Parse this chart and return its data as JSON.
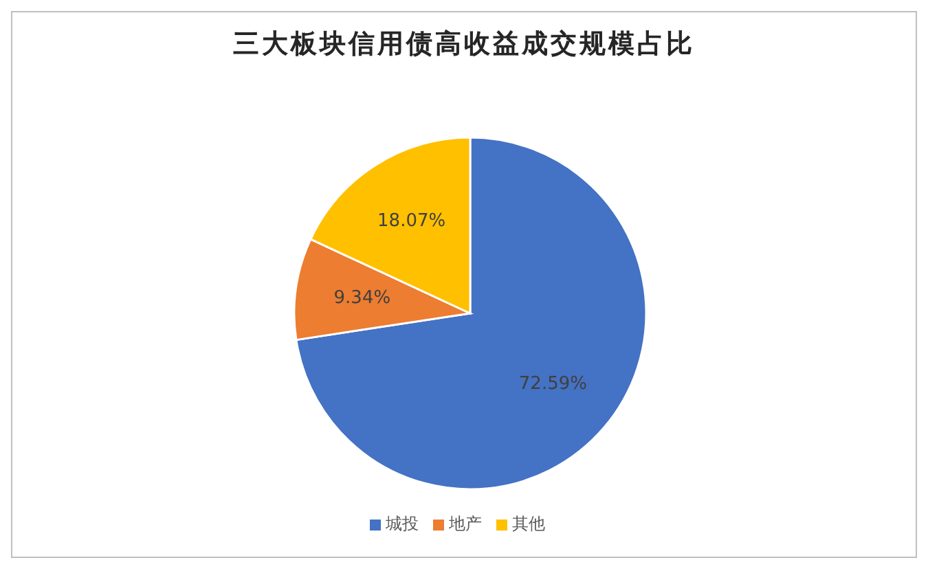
{
  "chart_data": {
    "type": "pie",
    "title": "三大板块信用债高收益成交规模占比",
    "categories": [
      "城投",
      "地产",
      "其他"
    ],
    "values": [
      72.59,
      9.34,
      18.07
    ],
    "colors": [
      "#4472c4",
      "#ed7d31",
      "#ffc000"
    ],
    "value_labels": [
      "72.59%",
      "9.34%",
      "18.07%"
    ],
    "legend": "bottom"
  }
}
